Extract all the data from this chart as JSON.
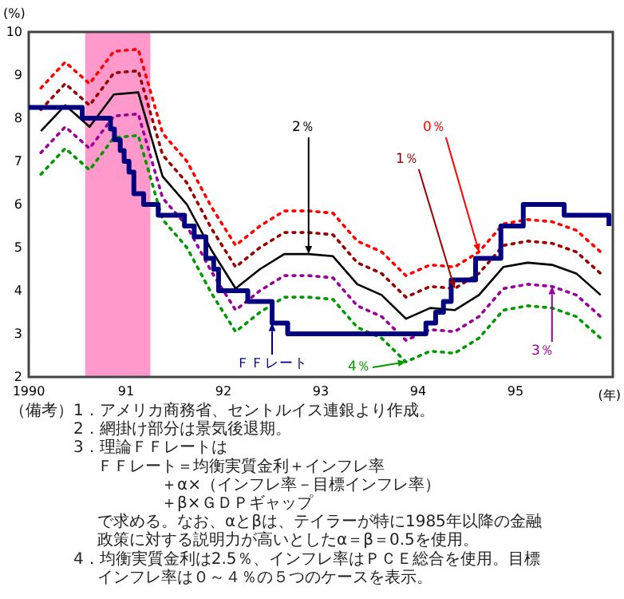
{
  "chart_data": {
    "type": "line",
    "ylabel": "(%)",
    "xlabel": "(年)",
    "xlim": [
      1990,
      1996
    ],
    "xticks": [
      1990,
      {
        "value": 1991,
        "label": "91"
      },
      {
        "value": 1992,
        "label": "92"
      },
      {
        "value": 1993,
        "label": "93"
      },
      {
        "value": 1994,
        "label": "94"
      },
      {
        "value": 1995,
        "label": "95"
      }
    ],
    "ylim": [
      2,
      10
    ],
    "yticks": [
      2,
      3,
      4,
      5,
      6,
      7,
      8,
      9,
      10
    ],
    "x": [
      1990.125,
      1990.375,
      1990.625,
      1990.875,
      1991.125,
      1991.375,
      1991.625,
      1991.875,
      1992.125,
      1992.375,
      1992.625,
      1992.875,
      1993.125,
      1993.375,
      1993.625,
      1993.875,
      1994.125,
      1994.375,
      1994.625,
      1994.875,
      1995.125,
      1995.375,
      1995.625,
      1995.875
    ],
    "bands": [
      {
        "axis": "x",
        "from": 1990.58,
        "to": 1991.25,
        "color": "#ff99cc"
      }
    ],
    "series": [
      {
        "name": "0％",
        "color": "#ff0000",
        "line_style": "dotted",
        "values": [
          8.7,
          9.3,
          8.8,
          9.55,
          9.6,
          7.65,
          7.0,
          5.95,
          5.05,
          5.5,
          5.85,
          5.85,
          5.8,
          5.15,
          4.9,
          4.35,
          4.6,
          4.55,
          4.9,
          5.55,
          5.65,
          5.6,
          5.4,
          4.9
        ]
      },
      {
        "name": "1％",
        "color": "#990000",
        "line_style": "dotted",
        "values": [
          8.2,
          8.8,
          8.3,
          9.05,
          9.1,
          7.15,
          6.5,
          5.45,
          4.55,
          5.0,
          5.35,
          5.35,
          5.3,
          4.65,
          4.4,
          3.85,
          4.1,
          4.05,
          4.4,
          5.05,
          5.15,
          5.1,
          4.9,
          4.4
        ]
      },
      {
        "name": "2％",
        "color": "#000000",
        "line_style": "solid",
        "values": [
          7.7,
          8.3,
          7.8,
          8.55,
          8.6,
          6.65,
          6.0,
          4.95,
          4.05,
          4.5,
          4.85,
          4.85,
          4.8,
          4.15,
          3.9,
          3.35,
          3.6,
          3.55,
          3.9,
          4.55,
          4.65,
          4.6,
          4.4,
          3.9
        ]
      },
      {
        "name": "3％",
        "color": "#990099",
        "line_style": "dotted",
        "values": [
          7.2,
          7.8,
          7.3,
          8.05,
          8.1,
          6.15,
          5.5,
          4.45,
          3.55,
          4.0,
          4.35,
          4.35,
          4.3,
          3.65,
          3.4,
          2.85,
          3.1,
          3.05,
          3.4,
          4.05,
          4.15,
          4.1,
          3.9,
          3.4
        ]
      },
      {
        "name": "4％",
        "color": "#009900",
        "line_style": "dotted",
        "values": [
          6.7,
          7.3,
          6.8,
          7.55,
          7.6,
          5.65,
          5.0,
          3.95,
          3.05,
          3.5,
          3.85,
          3.85,
          3.8,
          3.15,
          2.9,
          2.35,
          2.6,
          2.55,
          2.9,
          3.55,
          3.65,
          3.6,
          3.4,
          2.9
        ]
      },
      {
        "name": "ＦＦレート",
        "type": "step",
        "color": "#000080",
        "line_style": "solid",
        "x": [
          1990,
          1990.55,
          1990.84,
          1990.88,
          1990.94,
          1990.98,
          1991.03,
          1991.08,
          1991.18,
          1991.33,
          1991.6,
          1991.7,
          1991.82,
          1991.9,
          1991.95,
          1992.25,
          1992.5,
          1992.66,
          1994.08,
          1994.18,
          1994.26,
          1994.34,
          1994.59,
          1994.85,
          1995.08,
          1995.5,
          1995.96
        ],
        "values": [
          8.25,
          8.0,
          7.75,
          7.5,
          7.25,
          7.0,
          6.75,
          6.25,
          6.0,
          5.75,
          5.5,
          5.25,
          4.75,
          4.5,
          4.0,
          3.75,
          3.25,
          3.0,
          3.25,
          3.5,
          3.75,
          4.25,
          4.75,
          5.5,
          6.0,
          5.75,
          5.5
        ]
      }
    ],
    "annotations": [
      "（備考）1．アメリカ商務省、セントルイス連銀より作成。",
      "2．網掛け部分は景気後退期。",
      "3．理論ＦＦレートは",
      "ＦＦレート＝均衡実質金利＋インフレ率",
      "＋α×（インフレ率－目標インフレ率）",
      "＋β×ＧＤＰギャップ",
      "で求める。なお、αとβは、テイラーが特に1985年以降の金融",
      "政策に対する説明力が高いとしたα＝β＝0.5を使用。",
      "4．均衡実質金利は2.5％、インフレ率はＰＣＥ総合を使用。目標",
      "インフレ率は０～４％の５つのケースを表示。"
    ]
  }
}
